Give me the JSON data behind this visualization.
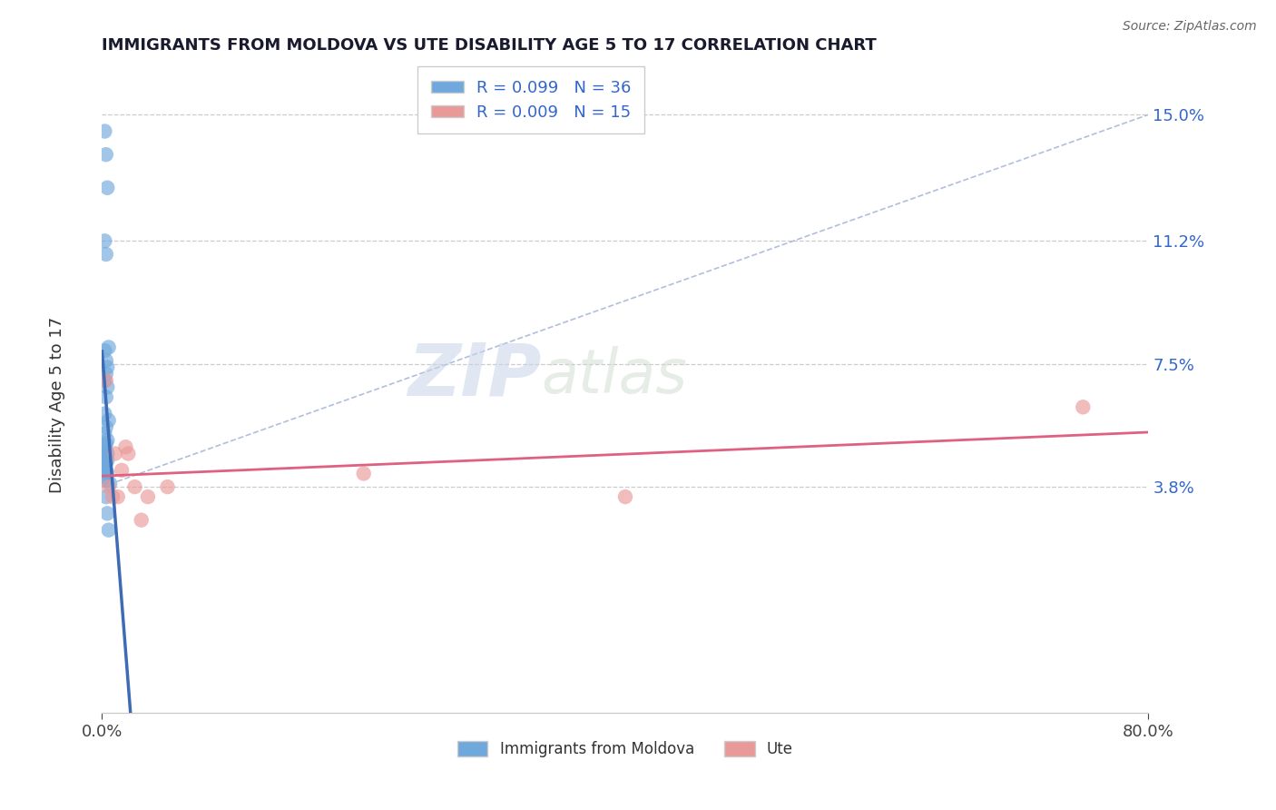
{
  "title": "IMMIGRANTS FROM MOLDOVA VS UTE DISABILITY AGE 5 TO 17 CORRELATION CHART",
  "source": "Source: ZipAtlas.com",
  "xlabel_blue": "Immigrants from Moldova",
  "xlabel_pink": "Ute",
  "ylabel": "Disability Age 5 to 17",
  "xlim": [
    0.0,
    0.8
  ],
  "ylim": [
    -0.03,
    0.165
  ],
  "yticks": [
    0.038,
    0.075,
    0.112,
    0.15
  ],
  "ytick_labels": [
    "3.8%",
    "7.5%",
    "11.2%",
    "15.0%"
  ],
  "xticks": [
    0.0,
    0.8
  ],
  "xtick_labels": [
    "0.0%",
    "80.0%"
  ],
  "blue_x": [
    0.002,
    0.003,
    0.004,
    0.002,
    0.003,
    0.005,
    0.002,
    0.003,
    0.004,
    0.003,
    0.002,
    0.004,
    0.003,
    0.002,
    0.005,
    0.003,
    0.002,
    0.004,
    0.003,
    0.002,
    0.003,
    0.004,
    0.002,
    0.003,
    0.002,
    0.004,
    0.003,
    0.002,
    0.003,
    0.004,
    0.002,
    0.003,
    0.006,
    0.003,
    0.004,
    0.005
  ],
  "blue_y": [
    0.145,
    0.138,
    0.128,
    0.112,
    0.108,
    0.08,
    0.079,
    0.076,
    0.074,
    0.072,
    0.07,
    0.068,
    0.065,
    0.06,
    0.058,
    0.056,
    0.054,
    0.052,
    0.051,
    0.05,
    0.049,
    0.048,
    0.048,
    0.047,
    0.046,
    0.046,
    0.045,
    0.044,
    0.043,
    0.042,
    0.041,
    0.04,
    0.039,
    0.035,
    0.03,
    0.025
  ],
  "pink_x": [
    0.003,
    0.005,
    0.008,
    0.01,
    0.012,
    0.015,
    0.018,
    0.02,
    0.025,
    0.03,
    0.035,
    0.05,
    0.2,
    0.4,
    0.75
  ],
  "pink_y": [
    0.07,
    0.038,
    0.035,
    0.048,
    0.035,
    0.043,
    0.05,
    0.048,
    0.038,
    0.028,
    0.035,
    0.038,
    0.042,
    0.035,
    0.062
  ],
  "blue_color": "#6fa8dc",
  "pink_color": "#ea9999",
  "blue_line_color": "#3d6bb5",
  "pink_line_color": "#e06080",
  "diag_line_color": "#a8b8d8",
  "R_blue": 0.099,
  "N_blue": 36,
  "R_pink": 0.009,
  "N_pink": 15,
  "watermark_zip": "ZIP",
  "watermark_atlas": "atlas",
  "background_color": "#ffffff",
  "grid_color": "#cccccc",
  "blue_trend_xmax": 0.05
}
